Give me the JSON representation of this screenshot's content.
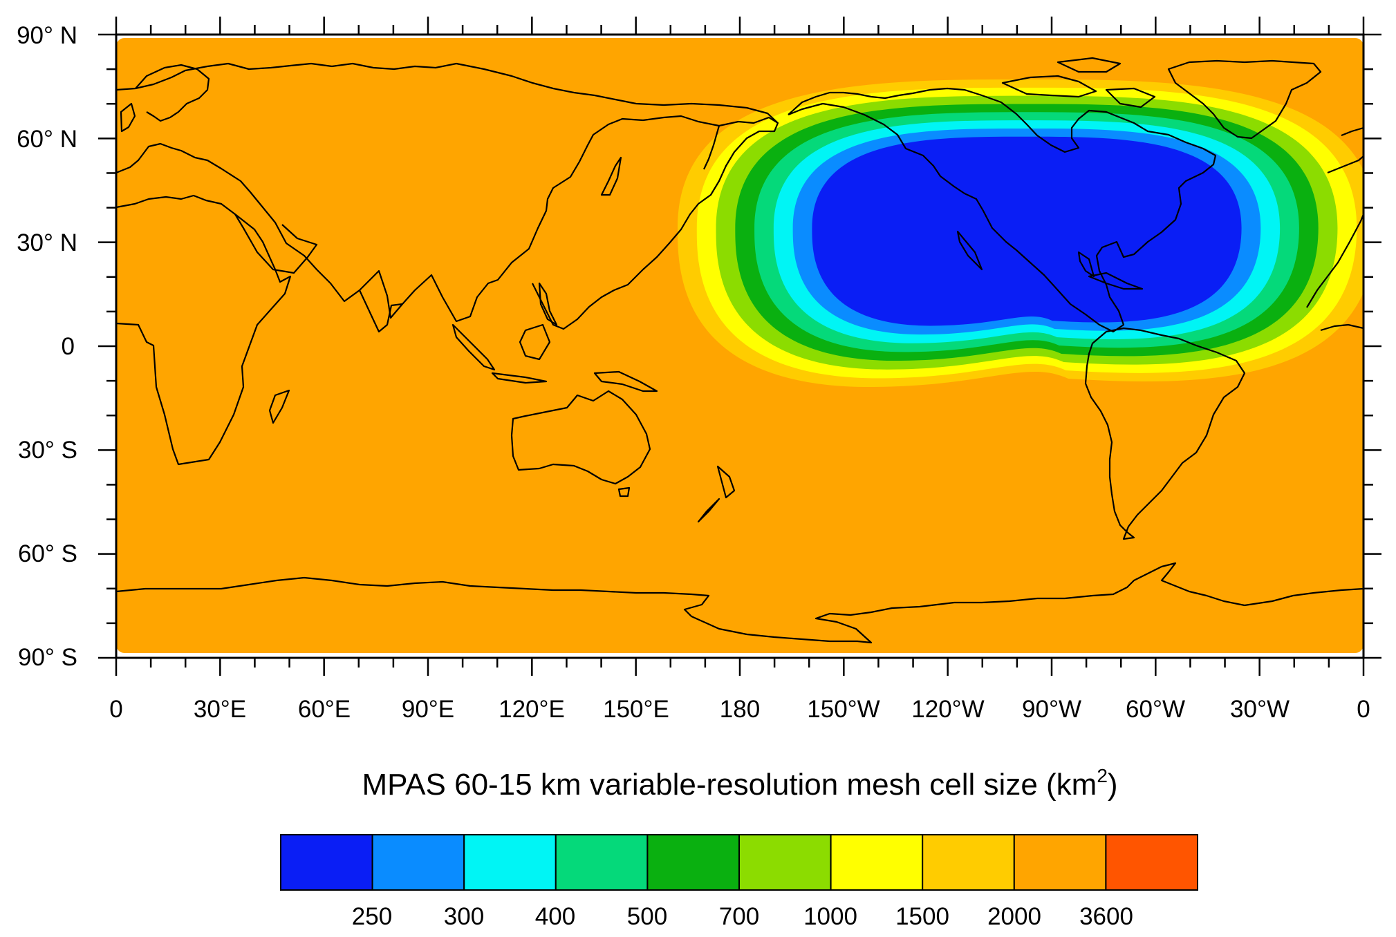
{
  "title": {
    "main": "MPAS 60-15 km variable-resolution mesh cell size (km",
    "superscript": "2",
    "close": ")"
  },
  "axes": {
    "y_labels": [
      "90° N",
      "60° N",
      "30° N",
      "0",
      "30° S",
      "60° S",
      "90° S"
    ],
    "x_labels": [
      "0",
      "30°E",
      "60°E",
      "90°E",
      "120°E",
      "150°E",
      "180",
      "150°W",
      "120°W",
      "90°W",
      "60°W",
      "30°W",
      "0"
    ]
  },
  "colors": {
    "background_field": "#FFA500",
    "coastline": "#000000"
  },
  "colorbar": {
    "colors": [
      "#0A1EF5",
      "#0A8CFF",
      "#00F5F5",
      "#05D97A",
      "#0AB010",
      "#8CDC00",
      "#FFFF00",
      "#FFCC00",
      "#FFA500",
      "#FF5500"
    ],
    "labels": [
      "250",
      "300",
      "400",
      "500",
      "700",
      "1000",
      "1500",
      "2000",
      "3600"
    ]
  },
  "chart_data": {
    "type": "heatmap",
    "title": "MPAS 60-15 km variable-resolution mesh cell size (km2)",
    "projection": "cylindrical-equidistant",
    "lon_range": [
      0,
      360
    ],
    "lat_range": [
      -90,
      90
    ],
    "levels": [
      250,
      300,
      400,
      500,
      700,
      1000,
      1500,
      2000,
      3600
    ],
    "field": {
      "background_value": "2000-3600",
      "refined_region": "North America centered near 100°W, 30°N; minimum cell size below 250 km2",
      "transition": "increases outward through 300, 400, 500, 700, 1000, 1500, 2000"
    }
  }
}
